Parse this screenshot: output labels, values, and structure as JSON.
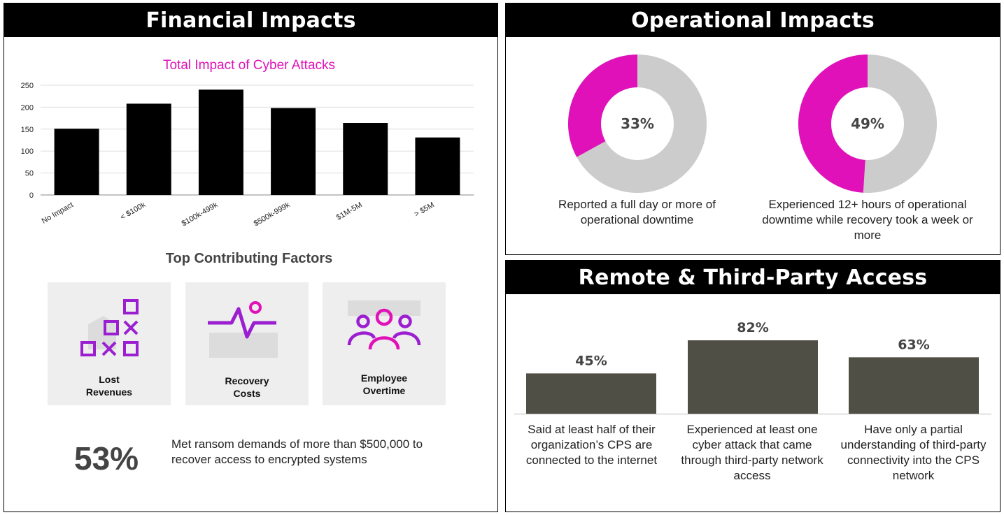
{
  "financial": {
    "header": "Financial Impacts",
    "factors_title": "Top Contributing Factors",
    "factors": [
      {
        "label": "Lost\nRevenues",
        "icon": "lost-revenues-icon"
      },
      {
        "label": "Recovery\nCosts",
        "icon": "recovery-costs-icon"
      },
      {
        "label": "Employee\nOvertime",
        "icon": "employee-overtime-icon"
      }
    ],
    "ransom_stat": "53%",
    "ransom_desc": "Met ransom demands of more than $500,000 to recover access to encrypted systems"
  },
  "operational": {
    "header": "Operational Impacts",
    "donuts": [
      {
        "value": "33%",
        "fraction": 0.33,
        "desc": "Reported a full day or more of operational downtime"
      },
      {
        "value": "49%",
        "fraction": 0.49,
        "desc": "Experienced 12+ hours of operational downtime while recovery took a week or more"
      }
    ]
  },
  "remote": {
    "header": "Remote & Third-Party Access",
    "bars": [
      {
        "value": "45%",
        "num": 45,
        "desc": "Said at least half of their organization’s CPS are connected to the internet"
      },
      {
        "value": "82%",
        "num": 82,
        "desc": "Experienced at least one cyber attack that came through third-party network access"
      },
      {
        "value": "63%",
        "num": 63,
        "desc": "Have only a partial understanding of third-party connectivity into the CPS network"
      }
    ]
  },
  "colors": {
    "accent": "#e011b8",
    "purple": "#9b1fd1",
    "donut_gray": "#cccccc",
    "bar_dark": "#4f4f45",
    "bar_black": "#000000"
  },
  "chart_data": [
    {
      "type": "bar",
      "title": "Total Impact of Cyber Attacks",
      "categories": [
        "No Impact",
        "< $100k",
        "$100k-499k",
        "$500k-999k",
        "$1M-5M",
        "> $5M"
      ],
      "values": [
        151,
        208,
        240,
        198,
        164,
        131
      ],
      "yticks": [
        "0",
        "50",
        "100",
        "150",
        "200",
        "250"
      ],
      "ylim": [
        0,
        250
      ],
      "grid": true,
      "xlabel": "",
      "ylabel": ""
    },
    {
      "type": "pie",
      "variant": "donut",
      "values": [
        33,
        67
      ],
      "label": "33%"
    },
    {
      "type": "pie",
      "variant": "donut",
      "values": [
        49,
        51
      ],
      "label": "49%"
    },
    {
      "type": "bar",
      "categories": [
        "Said at least half of their organization’s CPS are connected to the internet",
        "Experienced at least one cyber attack that came through third-party network access",
        "Have only a partial understanding of third-party connectivity into the CPS network"
      ],
      "values": [
        45,
        82,
        63
      ],
      "ylim": [
        0,
        100
      ]
    }
  ]
}
